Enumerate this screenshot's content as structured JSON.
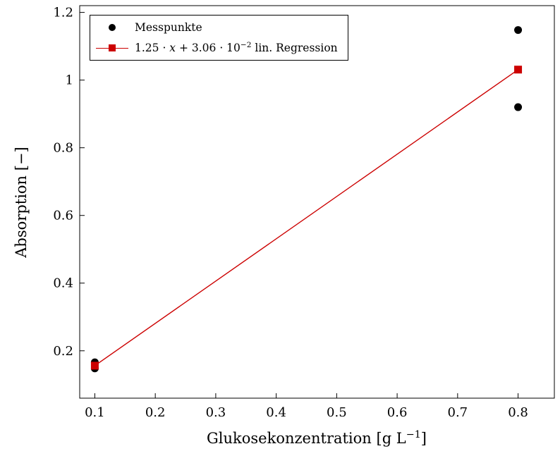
{
  "chart_data": {
    "type": "scatter",
    "title": "",
    "xlabel": "Glukosekonzentration [g L⁻¹]",
    "ylabel": "Absorption [−]",
    "xlabel_pre": "Glukosekonzentration [g L",
    "xlabel_sup": "−1",
    "xlabel_post": "]",
    "xlim": [
      0.075,
      0.86
    ],
    "ylim": [
      0.06,
      1.22
    ],
    "xtick_values": [
      0.1,
      0.2,
      0.3,
      0.4,
      0.5,
      0.6,
      0.7,
      0.8
    ],
    "xtick_labels": [
      "0.1",
      "0.2",
      "0.3",
      "0.4",
      "0.5",
      "0.6",
      "0.7",
      "0.8"
    ],
    "ytick_values": [
      0.2,
      0.4,
      0.6,
      0.8,
      1.0,
      1.2
    ],
    "ytick_labels": [
      "0.2",
      "0.4",
      "0.6",
      "0.8",
      "1",
      "1.2"
    ],
    "grid": false,
    "legend_position": "top-left",
    "colors": {
      "points": "#000000",
      "regression": "#cc0000",
      "axis": "#000000",
      "background": "#ffffff"
    },
    "legend": {
      "messpunkte": "Messpunkte",
      "regression_full": "1.25 · x + 3.06 · 10⁻² lin. Regression",
      "regression_pre": "1.25 · ",
      "regression_var": "x",
      "regression_mid": " + 3.06 · 10",
      "regression_sup": "−2",
      "regression_post": " lin. Regression"
    },
    "series": [
      {
        "name": "Messpunkte",
        "type": "scatter",
        "marker": "circle",
        "color": "#000000",
        "points": [
          [
            0.1,
            0.148
          ],
          [
            0.1,
            0.166
          ],
          [
            0.8,
            0.92
          ],
          [
            0.8,
            1.148
          ]
        ]
      },
      {
        "name": "1.25 · x + 3.06 · 10⁻² lin. Regression",
        "type": "line",
        "marker": "square",
        "color": "#cc0000",
        "slope": 1.25,
        "intercept": 0.0306,
        "points": [
          [
            0.1,
            0.156
          ],
          [
            0.8,
            1.031
          ]
        ]
      }
    ]
  }
}
